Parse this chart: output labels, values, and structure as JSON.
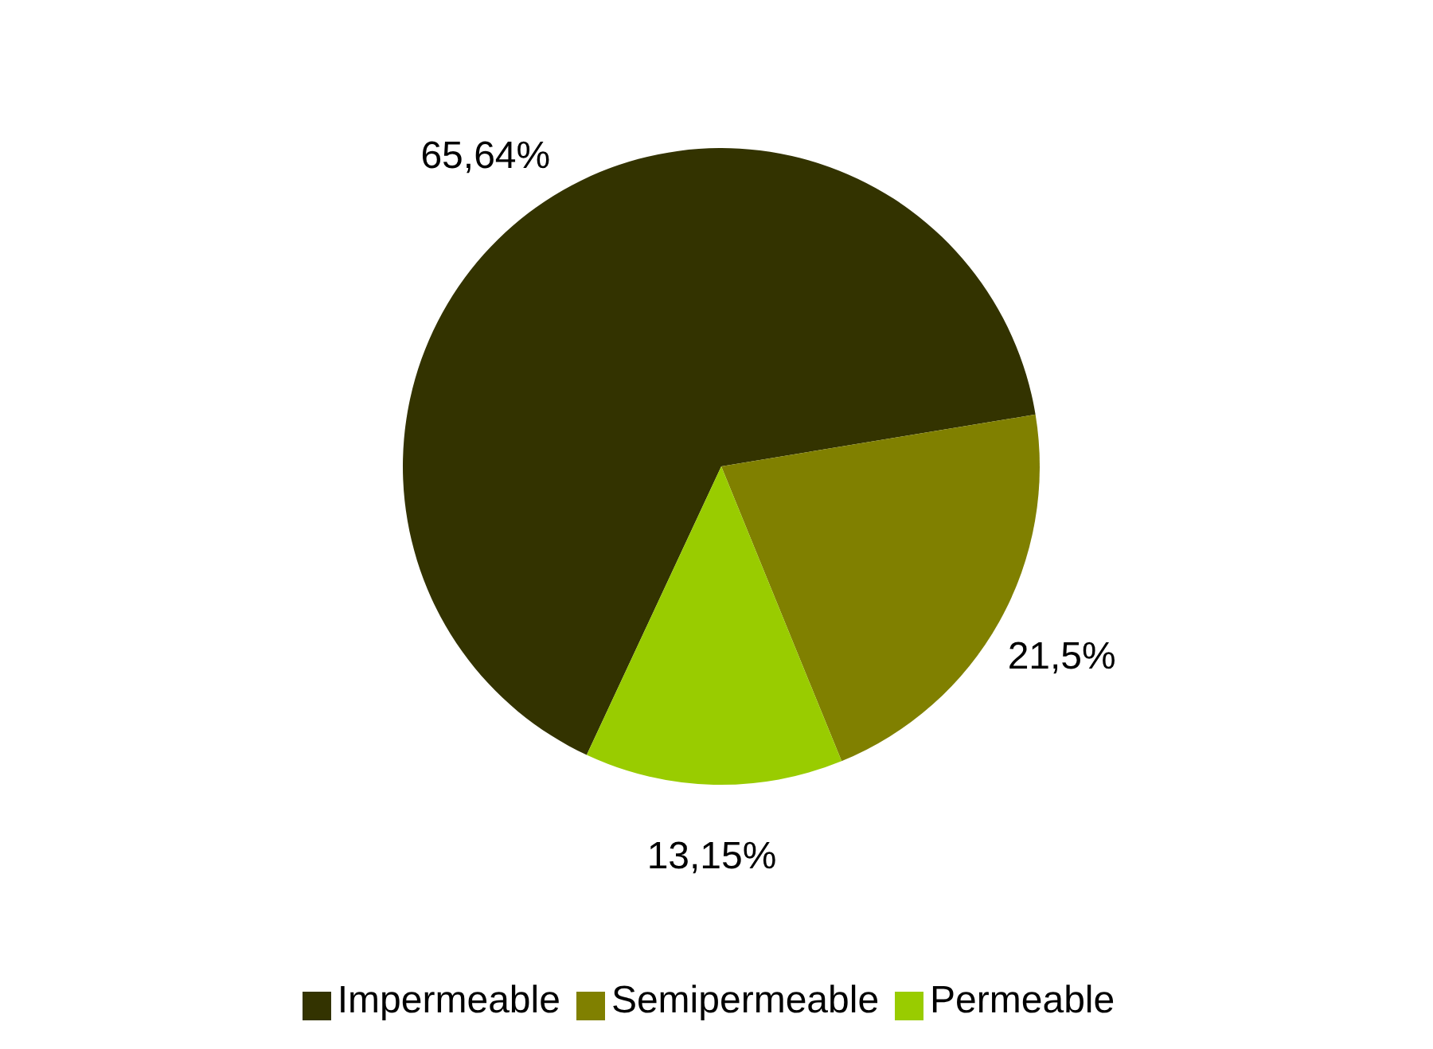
{
  "chart_data": {
    "type": "pie",
    "categories": [
      "Impermeable",
      "Semipermeable",
      "Permeable"
    ],
    "values": [
      65.64,
      21.5,
      13.15
    ],
    "value_labels": [
      "65,64%",
      "21,5%",
      "13,15%"
    ],
    "colors": [
      "#333300",
      "#808000",
      "#99cc00"
    ],
    "legend": "bottom"
  }
}
